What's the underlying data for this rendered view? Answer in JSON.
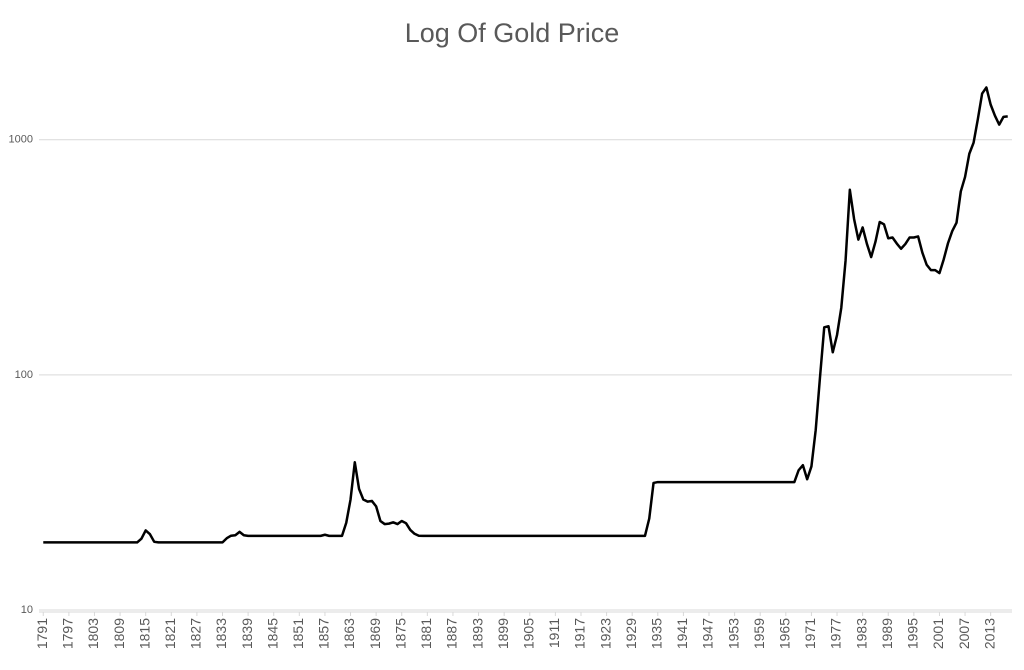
{
  "chart_data": {
    "type": "line",
    "title": "Log Of Gold Price",
    "log_y": true,
    "grid": true,
    "color": "#000000",
    "x": [
      1791,
      1792,
      1793,
      1794,
      1795,
      1796,
      1797,
      1798,
      1799,
      1800,
      1801,
      1802,
      1803,
      1804,
      1805,
      1806,
      1807,
      1808,
      1809,
      1810,
      1811,
      1812,
      1813,
      1814,
      1815,
      1816,
      1817,
      1818,
      1819,
      1820,
      1821,
      1822,
      1823,
      1824,
      1825,
      1826,
      1827,
      1828,
      1829,
      1830,
      1831,
      1832,
      1833,
      1834,
      1835,
      1836,
      1837,
      1838,
      1839,
      1840,
      1841,
      1842,
      1843,
      1844,
      1845,
      1846,
      1847,
      1848,
      1849,
      1850,
      1851,
      1852,
      1853,
      1854,
      1855,
      1856,
      1857,
      1858,
      1859,
      1860,
      1861,
      1862,
      1863,
      1864,
      1865,
      1866,
      1867,
      1868,
      1869,
      1870,
      1871,
      1872,
      1873,
      1874,
      1875,
      1876,
      1877,
      1878,
      1879,
      1880,
      1881,
      1882,
      1883,
      1884,
      1885,
      1886,
      1887,
      1888,
      1889,
      1890,
      1891,
      1892,
      1893,
      1894,
      1895,
      1896,
      1897,
      1898,
      1899,
      1900,
      1901,
      1902,
      1903,
      1904,
      1905,
      1906,
      1907,
      1908,
      1909,
      1910,
      1911,
      1912,
      1913,
      1914,
      1915,
      1916,
      1917,
      1918,
      1919,
      1920,
      1921,
      1922,
      1923,
      1924,
      1925,
      1926,
      1927,
      1928,
      1929,
      1930,
      1931,
      1932,
      1933,
      1934,
      1935,
      1936,
      1937,
      1938,
      1939,
      1940,
      1941,
      1942,
      1943,
      1944,
      1945,
      1946,
      1947,
      1948,
      1949,
      1950,
      1951,
      1952,
      1953,
      1954,
      1955,
      1956,
      1957,
      1958,
      1959,
      1960,
      1961,
      1962,
      1963,
      1964,
      1965,
      1966,
      1967,
      1968,
      1969,
      1970,
      1971,
      1972,
      1973,
      1974,
      1975,
      1976,
      1977,
      1978,
      1979,
      1980,
      1981,
      1982,
      1983,
      1984,
      1985,
      1986,
      1987,
      1988,
      1989,
      1990,
      1991,
      1992,
      1993,
      1994,
      1995,
      1996,
      1997,
      1998,
      1999,
      2000,
      2001,
      2002,
      2003,
      2004,
      2005,
      2006,
      2007,
      2008,
      2009,
      2010,
      2011,
      2012,
      2013,
      2014,
      2015,
      2016,
      2017
    ],
    "values": [
      19.39,
      19.39,
      19.39,
      19.39,
      19.39,
      19.39,
      19.39,
      19.39,
      19.39,
      19.39,
      19.39,
      19.39,
      19.39,
      19.39,
      19.39,
      19.39,
      19.39,
      19.39,
      19.39,
      19.39,
      19.39,
      19.39,
      19.39,
      20.1,
      21.8,
      21.0,
      19.5,
      19.39,
      19.39,
      19.39,
      19.39,
      19.39,
      19.39,
      19.39,
      19.39,
      19.39,
      19.39,
      19.39,
      19.39,
      19.39,
      19.39,
      19.39,
      19.39,
      20.2,
      20.7,
      20.8,
      21.5,
      20.8,
      20.67,
      20.67,
      20.67,
      20.67,
      20.67,
      20.67,
      20.67,
      20.67,
      20.67,
      20.67,
      20.67,
      20.67,
      20.67,
      20.67,
      20.67,
      20.67,
      20.67,
      20.67,
      20.9,
      20.67,
      20.67,
      20.67,
      20.67,
      23.5,
      29.5,
      42.5,
      32.7,
      29.5,
      28.9,
      29.1,
      27.6,
      23.9,
      23.2,
      23.3,
      23.6,
      23.2,
      23.9,
      23.4,
      21.9,
      21.1,
      20.7,
      20.67,
      20.67,
      20.67,
      20.67,
      20.67,
      20.67,
      20.67,
      20.67,
      20.67,
      20.67,
      20.67,
      20.67,
      20.67,
      20.67,
      20.67,
      20.67,
      20.67,
      20.67,
      20.67,
      20.67,
      20.67,
      20.67,
      20.67,
      20.67,
      20.67,
      20.67,
      20.67,
      20.67,
      20.67,
      20.67,
      20.67,
      20.67,
      20.67,
      20.67,
      20.67,
      20.67,
      20.67,
      20.67,
      20.67,
      20.67,
      20.67,
      20.67,
      20.67,
      20.67,
      20.67,
      20.67,
      20.67,
      20.67,
      20.67,
      20.67,
      20.67,
      20.67,
      20.67,
      24.5,
      34.7,
      35,
      35,
      35,
      35,
      35,
      35,
      35,
      35,
      35,
      35,
      35,
      35,
      35,
      35,
      35,
      35,
      35,
      35,
      35,
      35,
      35,
      35,
      35,
      35,
      35,
      35,
      35,
      35,
      35,
      35,
      35,
      35,
      35,
      39.3,
      41.3,
      36.0,
      40.8,
      58.2,
      97.3,
      159.3,
      161.0,
      124.8,
      147.8,
      193.2,
      306.7,
      612.6,
      460,
      376,
      424,
      361,
      317,
      368,
      447,
      437,
      381,
      384,
      362,
      344,
      360,
      384,
      384,
      388,
      331,
      294,
      279,
      279,
      271,
      310,
      363,
      409,
      444,
      603,
      695,
      872,
      972,
      1225,
      1572,
      1669,
      1411,
      1266,
      1160,
      1251,
      1257
    ],
    "xlim": [
      1790,
      2018
    ],
    "xticks": [
      1791,
      1797,
      1803,
      1809,
      1815,
      1821,
      1827,
      1833,
      1839,
      1845,
      1851,
      1857,
      1863,
      1869,
      1875,
      1881,
      1887,
      1893,
      1899,
      1905,
      1911,
      1917,
      1923,
      1929,
      1935,
      1941,
      1947,
      1953,
      1959,
      1965,
      1971,
      1977,
      1983,
      1989,
      1995,
      2001,
      2007,
      2013
    ],
    "ylim": [
      10,
      2000
    ],
    "yticks": [
      10,
      100,
      1000
    ]
  }
}
